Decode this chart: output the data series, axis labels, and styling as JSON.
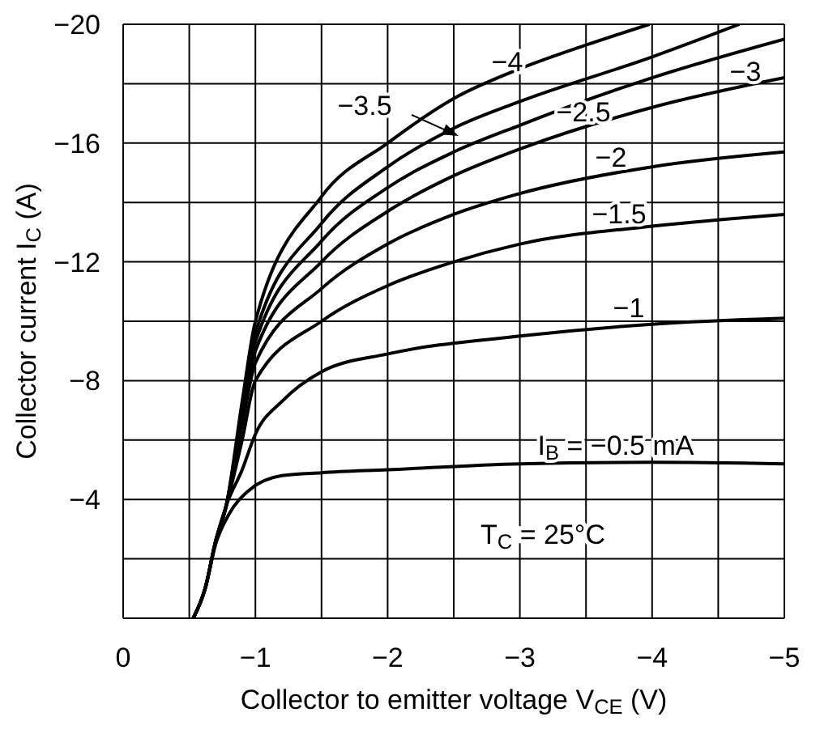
{
  "chart_data": {
    "type": "line",
    "xlabel": "Collector to emitter voltage  V$_{CE}$  (V)",
    "ylabel": "Collector current  I$_{C}$  (A)",
    "xlim": [
      0,
      -5
    ],
    "ylim": [
      0,
      -20
    ],
    "xticks": [
      0,
      {
        "value": -0.5,
        "label": null
      },
      {
        "value": -1,
        "label": "−1"
      },
      {
        "value": -1.5,
        "label": null
      },
      {
        "value": -2,
        "label": "−2"
      },
      {
        "value": -2.5,
        "label": null
      },
      {
        "value": -3,
        "label": "−3"
      },
      {
        "value": -3.5,
        "label": null
      },
      {
        "value": -4,
        "label": "−4"
      },
      {
        "value": -4.5,
        "label": null
      },
      {
        "value": -5,
        "label": "−5"
      }
    ],
    "yticks": [
      {
        "value": 0,
        "label": null
      },
      {
        "value": -2,
        "label": null
      },
      {
        "value": -4,
        "label": "−4"
      },
      {
        "value": -6,
        "label": null
      },
      {
        "value": -8,
        "label": "−8"
      },
      {
        "value": -10,
        "label": null
      },
      {
        "value": -12,
        "label": "−12"
      },
      {
        "value": -14,
        "label": null
      },
      {
        "value": -16,
        "label": "−16"
      },
      {
        "value": -18,
        "label": null
      },
      {
        "value": -20,
        "label": "−20"
      }
    ],
    "grid": true,
    "marker": "none",
    "line_style": "solid",
    "series": [
      {
        "name": "−4",
        "color": "#000000",
        "x": [
          -0.53,
          -0.62,
          -0.7,
          -0.78,
          -0.9,
          -1,
          -1.5,
          -2,
          -2.5,
          -3,
          -3.5,
          -3.98
        ],
        "values": [
          0,
          -1,
          -2.6,
          -3.8,
          -7.3,
          -10,
          -14.2,
          -16,
          -17.5,
          -18.5,
          -19.3,
          -20
        ]
      },
      {
        "name": "−3.5",
        "color": "#000000",
        "x": [
          -0.53,
          -0.62,
          -0.7,
          -0.78,
          -0.9,
          -1,
          -1.5,
          -2,
          -2.5,
          -3,
          -4,
          -4.66
        ],
        "values": [
          0,
          -1,
          -2.6,
          -3.8,
          -7,
          -9.6,
          -13.3,
          -15.2,
          -16.5,
          -17.4,
          -18.9,
          -20
        ]
      },
      {
        "name": "−3",
        "color": "#000000",
        "x": [
          -0.53,
          -0.62,
          -0.7,
          -0.78,
          -0.9,
          -1,
          -1.5,
          -2,
          -2.5,
          -3,
          -4,
          -5
        ],
        "values": [
          0,
          -1,
          -2.6,
          -3.8,
          -6.9,
          -9.3,
          -12.7,
          -14.5,
          -15.7,
          -16.6,
          -18.2,
          -19.5
        ]
      },
      {
        "name": "−2.5",
        "color": "#000000",
        "x": [
          -0.53,
          -0.62,
          -0.7,
          -0.78,
          -0.9,
          -1,
          -1.5,
          -2,
          -2.5,
          -3,
          -4,
          -5
        ],
        "values": [
          0,
          -1,
          -2.6,
          -3.8,
          -6.7,
          -9,
          -12,
          -13.7,
          -14.9,
          -15.8,
          -17.2,
          -18.2
        ]
      },
      {
        "name": "−2",
        "color": "#000000",
        "x": [
          -0.53,
          -0.62,
          -0.7,
          -0.78,
          -0.9,
          -1,
          -1.5,
          -2,
          -2.5,
          -3,
          -4,
          -5
        ],
        "values": [
          0,
          -1,
          -2.6,
          -3.8,
          -6.5,
          -8.6,
          -11.1,
          -12.6,
          -13.6,
          -14.3,
          -15.2,
          -15.7
        ]
      },
      {
        "name": "−1.5",
        "color": "#000000",
        "x": [
          -0.53,
          -0.62,
          -0.7,
          -0.78,
          -0.9,
          -1,
          -1.5,
          -2,
          -2.5,
          -3,
          -4,
          -5
        ],
        "values": [
          0,
          -1,
          -2.6,
          -3.8,
          -6,
          -8,
          -10,
          -11.2,
          -12,
          -12.6,
          -13.2,
          -13.6
        ]
      },
      {
        "name": "−1",
        "color": "#000000",
        "x": [
          -0.53,
          -0.62,
          -0.7,
          -0.78,
          -0.9,
          -1,
          -1.2,
          -1.5,
          -2,
          -3,
          -4,
          -5
        ],
        "values": [
          0,
          -1,
          -2.6,
          -3.8,
          -5,
          -6.2,
          -7.3,
          -8.3,
          -8.9,
          -9.5,
          -9.9,
          -10.1
        ]
      },
      {
        "name": "I$_{B}$ = −0.5 mA",
        "color": "#000000",
        "x": [
          -0.53,
          -0.62,
          -0.7,
          -0.8,
          -0.95,
          -1.2,
          -1.5,
          -2,
          -3,
          -4,
          -5
        ],
        "values": [
          0,
          -1,
          -2.5,
          -3.5,
          -4.3,
          -4.8,
          -4.9,
          -5.0,
          -5.2,
          -5.25,
          -5.2
        ]
      }
    ],
    "annotations": [
      "T$_{C}$ = 25°C"
    ]
  }
}
